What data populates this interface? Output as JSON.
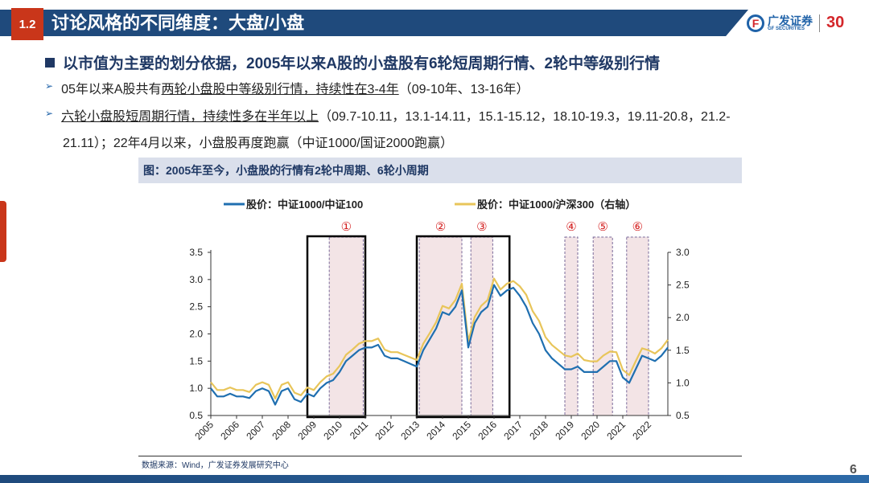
{
  "header": {
    "section": "1.2",
    "title": "讨论风格的不同维度：大盘/小盘",
    "logo_cn": "广发证券",
    "logo_en": "GF SECURITIES",
    "logo_badge": "30"
  },
  "bullets": {
    "main": "以市值为主要的划分依据，2005年以来A股的小盘股有6轮短周期行情、2轮中等级别行情",
    "sub1_pre": "05年以来A股共有",
    "sub1_u": "两轮小盘股中等级别行情，持续性在3-4年",
    "sub1_post": "（09-10年、13-16年）",
    "sub2_u": "六轮小盘股短周期行情，持续性多在半年以上",
    "sub2_post": "（09.7-10.11，13.1-14.11，15.1-15.12，18.10-19.3，19.11-20.8，21.2-",
    "sub2_line2": "21.11）；22年4月以来，小盘股再度跑赢（中证1000/国证2000跑赢）"
  },
  "chart_title": "图：2005年至今，小盘股的行情有2轮中周期、6轮小周期",
  "source": "数据来源：Wind，广发证券发展研究中心",
  "page_number": "6",
  "chart_data": {
    "type": "line",
    "title": "图：2005年至今，小盘股的行情有2轮中周期、6轮小周期",
    "legend_position": "top",
    "x_ticks": [
      "2005",
      "2006",
      "2007",
      "2008",
      "2009",
      "2010",
      "2011",
      "2012",
      "2013",
      "2014",
      "2015",
      "2016",
      "2017",
      "2018",
      "2019",
      "2020",
      "2021",
      "2022"
    ],
    "y_left": {
      "range": [
        0.5,
        3.5
      ],
      "ticks": [
        "0.5",
        "1.0",
        "1.5",
        "2.0",
        "2.5",
        "3.0",
        "3.5"
      ]
    },
    "y_right": {
      "range": [
        0.5,
        3.0
      ],
      "ticks": [
        "0.5",
        "1.0",
        "1.5",
        "2.0",
        "2.5",
        "3.0"
      ]
    },
    "x_start": 2005.0,
    "x_step": 0.25,
    "series": [
      {
        "name": "股价：中证1000/中证100",
        "axis": "left",
        "color": "#1f6fb0",
        "values": [
          1.0,
          0.85,
          0.85,
          0.9,
          0.85,
          0.85,
          0.82,
          0.95,
          1.0,
          0.95,
          0.7,
          0.95,
          1.0,
          0.8,
          0.75,
          0.9,
          0.85,
          1.0,
          1.1,
          1.15,
          1.3,
          1.5,
          1.6,
          1.7,
          1.75,
          1.75,
          1.8,
          1.6,
          1.55,
          1.55,
          1.5,
          1.45,
          1.4,
          1.7,
          1.9,
          2.1,
          2.4,
          2.35,
          2.5,
          2.8,
          1.75,
          2.2,
          2.4,
          2.5,
          2.9,
          2.7,
          2.8,
          2.85,
          2.7,
          2.5,
          2.2,
          2.0,
          1.7,
          1.55,
          1.45,
          1.35,
          1.35,
          1.4,
          1.3,
          1.3,
          1.3,
          1.4,
          1.5,
          1.5,
          1.2,
          1.1,
          1.35,
          1.6,
          1.55,
          1.5,
          1.6,
          1.75
        ]
      },
      {
        "name": "股价：中证1000/沪深300（右轴）",
        "axis": "right",
        "color": "#e8c55a",
        "values": [
          1.01,
          0.89,
          0.89,
          0.93,
          0.89,
          0.89,
          0.86,
          0.97,
          1.01,
          0.97,
          0.76,
          0.97,
          1.01,
          0.85,
          0.81,
          0.93,
          0.89,
          1.01,
          1.1,
          1.14,
          1.26,
          1.43,
          1.51,
          1.6,
          1.64,
          1.64,
          1.68,
          1.51,
          1.47,
          1.47,
          1.43,
          1.39,
          1.35,
          1.6,
          1.76,
          1.93,
          2.18,
          2.14,
          2.27,
          2.52,
          1.64,
          2.01,
          2.18,
          2.27,
          2.6,
          2.43,
          2.52,
          2.56,
          2.48,
          2.35,
          2.1,
          1.95,
          1.7,
          1.58,
          1.5,
          1.42,
          1.4,
          1.45,
          1.35,
          1.33,
          1.33,
          1.42,
          1.48,
          1.47,
          1.2,
          1.12,
          1.33,
          1.53,
          1.5,
          1.45,
          1.53,
          1.66
        ]
      }
    ],
    "medium_cycles": [
      {
        "start": 2008.75,
        "end": 2011.0
      },
      {
        "start": 2013.0,
        "end": 2016.6
      }
    ],
    "short_cycles": [
      {
        "label": "①",
        "start": 2009.6,
        "end": 2010.92
      },
      {
        "label": "②",
        "start": 2013.1,
        "end": 2014.75
      },
      {
        "label": "③",
        "start": 2015.1,
        "end": 2015.95
      },
      {
        "label": "④",
        "start": 2018.75,
        "end": 2019.25
      },
      {
        "label": "⑤",
        "start": 2019.85,
        "end": 2020.6
      },
      {
        "label": "⑥",
        "start": 2021.15,
        "end": 2022.0
      }
    ]
  }
}
